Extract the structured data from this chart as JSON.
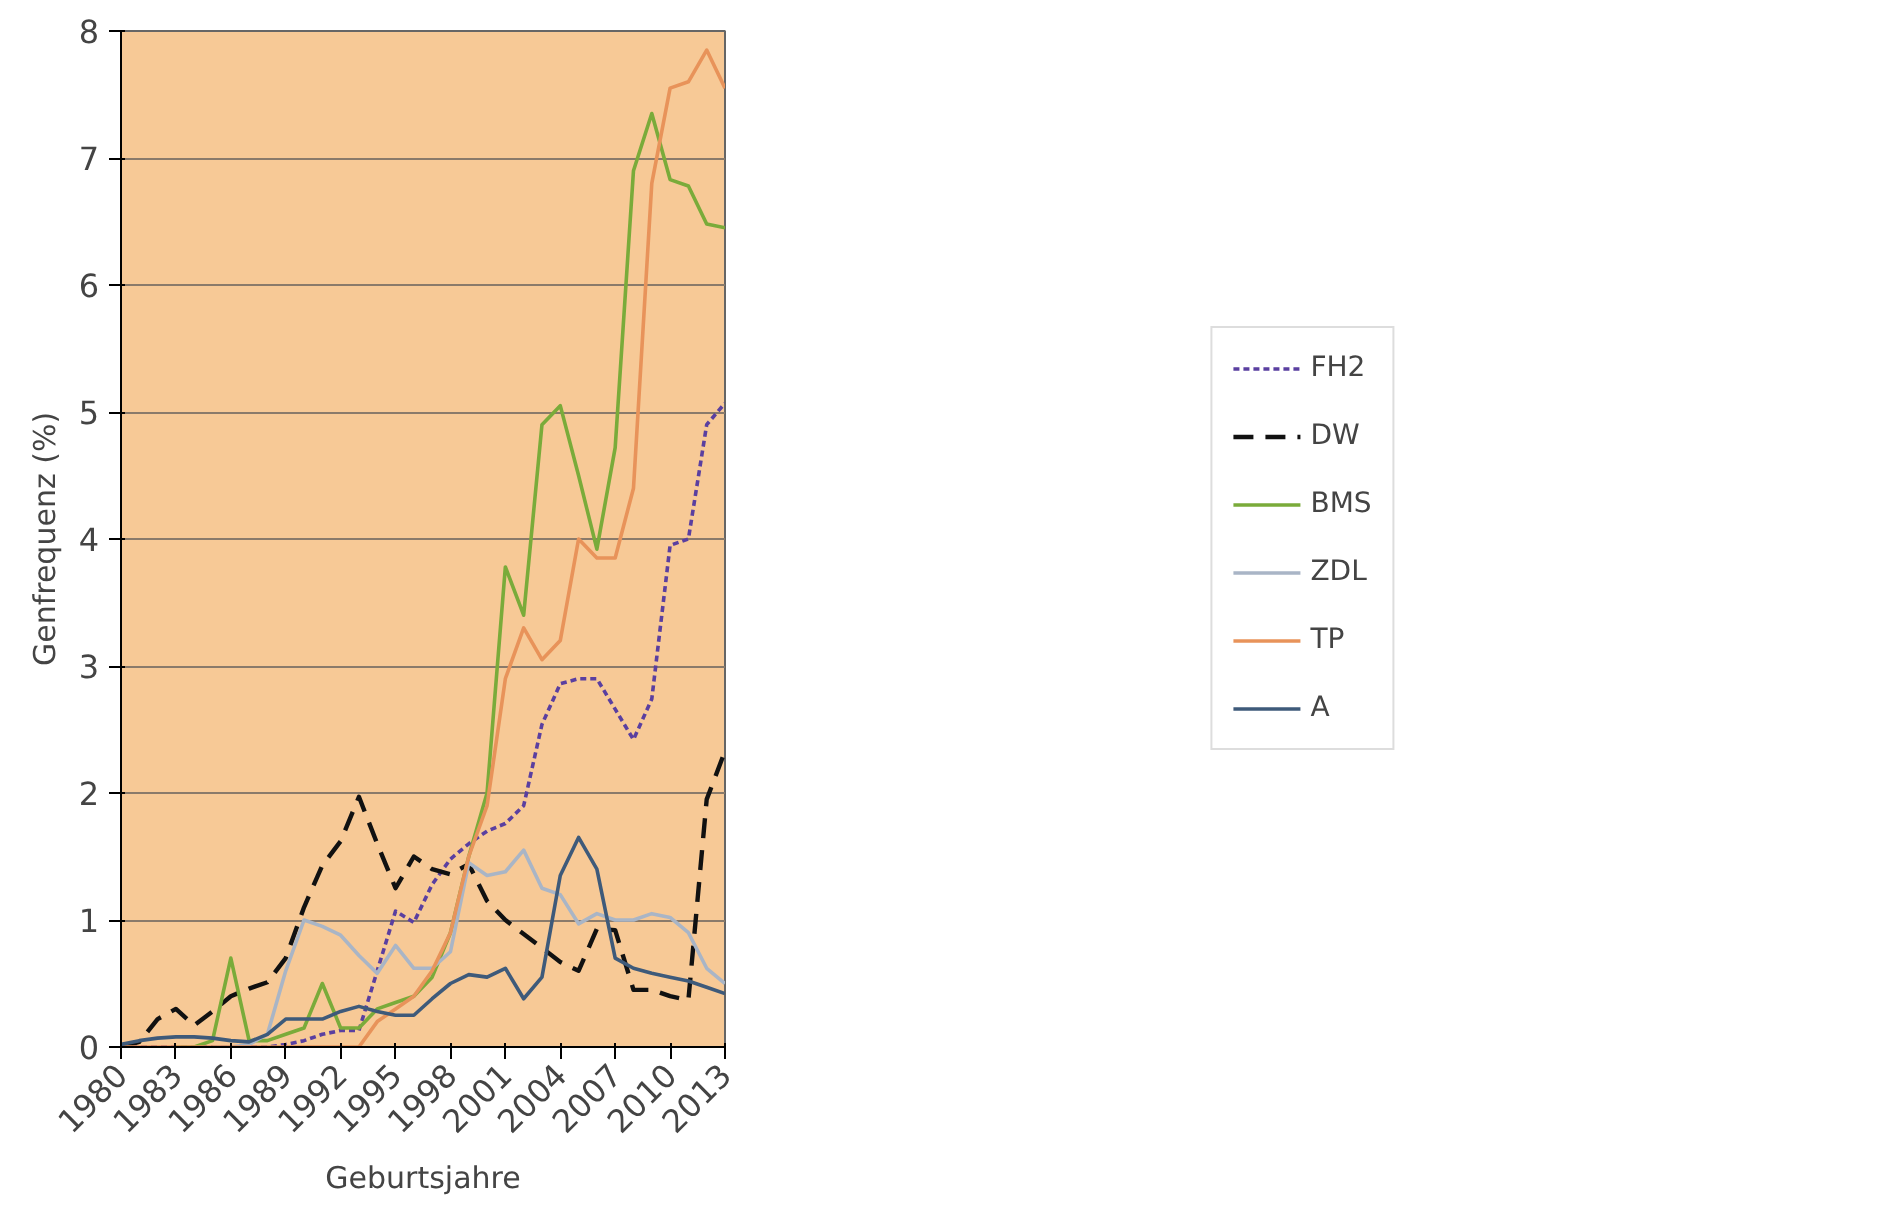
{
  "chart_data": {
    "type": "line",
    "xlabel": "Geburtsjahre",
    "ylabel": "Genfrequenz (%)",
    "x": [
      1980,
      1981,
      1982,
      1983,
      1984,
      1985,
      1986,
      1987,
      1988,
      1989,
      1990,
      1991,
      1992,
      1993,
      1994,
      1995,
      1996,
      1997,
      1998,
      1999,
      2000,
      2001,
      2002,
      2003,
      2004,
      2005,
      2006,
      2007,
      2008,
      2009,
      2010,
      2011,
      2012,
      2013
    ],
    "xlim": [
      1980,
      2013
    ],
    "xticks": [
      1980,
      1983,
      1986,
      1989,
      1992,
      1995,
      1998,
      2001,
      2004,
      2007,
      2010,
      2013
    ],
    "ylim": [
      0,
      8
    ],
    "yticks": [
      0,
      1,
      2,
      3,
      4,
      5,
      6,
      7,
      8
    ],
    "grid": "y",
    "legend": "right",
    "marker": "none",
    "series": [
      {
        "name": "FH2",
        "color": "#5a3fa0",
        "line_style": "dotted",
        "values": [
          0,
          0,
          0,
          0,
          0,
          0,
          0,
          0,
          0,
          0.02,
          0.05,
          0.1,
          0.13,
          0.13,
          0.6,
          1.07,
          0.98,
          1.28,
          1.48,
          1.6,
          1.7,
          1.76,
          1.9,
          2.54,
          2.86,
          2.9,
          2.9,
          2.66,
          2.42,
          2.74,
          3.95,
          4.0,
          4.9,
          5.07
        ]
      },
      {
        "name": "DW",
        "color": "#111111",
        "line_style": "dashed",
        "values": [
          0,
          0.04,
          0.22,
          0.3,
          0.17,
          0.28,
          0.4,
          0.46,
          0.51,
          0.7,
          1.1,
          1.43,
          1.62,
          1.97,
          1.6,
          1.25,
          1.5,
          1.4,
          1.36,
          1.44,
          1.15,
          1.0,
          0.89,
          0.78,
          0.67,
          0.6,
          0.93,
          0.92,
          0.45,
          0.45,
          0.4,
          0.37,
          1.95,
          2.33
        ]
      },
      {
        "name": "BMS",
        "color": "#7aab3a",
        "line_style": "solid",
        "values": [
          null,
          null,
          null,
          0,
          0,
          0.05,
          0.7,
          0.05,
          0.05,
          0.1,
          0.15,
          0.5,
          0.15,
          0.15,
          0.3,
          0.35,
          0.4,
          0.55,
          0.9,
          1.5,
          2.0,
          3.78,
          3.4,
          4.9,
          5.05,
          4.5,
          3.92,
          4.72,
          6.9,
          7.35,
          6.83,
          6.78,
          6.48,
          6.45
        ]
      },
      {
        "name": "ZDL",
        "color": "#a9b5c6",
        "line_style": "solid",
        "values": [
          null,
          null,
          null,
          null,
          null,
          0,
          0,
          0.02,
          0.1,
          0.6,
          1.0,
          0.95,
          0.88,
          0.72,
          0.58,
          0.8,
          0.62,
          0.62,
          0.75,
          1.45,
          1.35,
          1.38,
          1.55,
          1.25,
          1.2,
          0.97,
          1.05,
          1.0,
          1.0,
          1.05,
          1.02,
          0.9,
          0.62,
          0.5
        ]
      },
      {
        "name": "TP",
        "color": "#e8935a",
        "line_style": "solid",
        "values": [
          0,
          0,
          0,
          0,
          0,
          0,
          0,
          0,
          0,
          0,
          0,
          0,
          0,
          0,
          0.2,
          0.3,
          0.4,
          0.6,
          0.9,
          1.5,
          1.9,
          2.9,
          3.3,
          3.05,
          3.2,
          4.0,
          3.85,
          3.85,
          4.4,
          6.8,
          7.55,
          7.6,
          7.85,
          7.55
        ]
      },
      {
        "name": "A",
        "color": "#3e5a7a",
        "line_style": "solid",
        "values": [
          0.02,
          0.05,
          0.07,
          0.08,
          0.08,
          0.07,
          0.05,
          0.04,
          0.1,
          0.22,
          0.22,
          0.22,
          0.28,
          0.32,
          0.28,
          0.25,
          0.25,
          0.38,
          0.5,
          0.57,
          0.55,
          0.62,
          0.38,
          0.55,
          1.35,
          1.65,
          1.4,
          0.7,
          0.62,
          0.58,
          0.55,
          0.52,
          0.47,
          0.42
        ]
      }
    ]
  }
}
